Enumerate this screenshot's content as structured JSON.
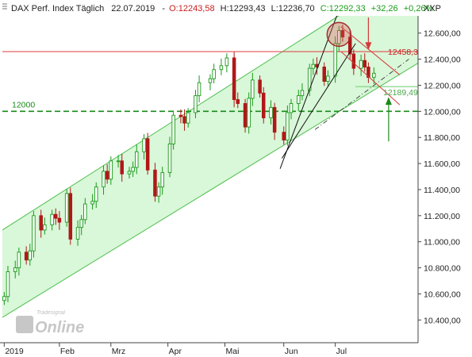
{
  "header": {
    "instrument": "DAX Perf. Index Täglich",
    "date": "22.07.2019",
    "open": "O:12243,58",
    "high": "H:12293,43",
    "low": "L:12236,70",
    "close": "C:12292,33",
    "change": "+32,26",
    "change_pct": "+0,26%"
  },
  "axis_unit": "XXP",
  "level_labels": {
    "resistance": "12458,3",
    "support": "12189,49",
    "round": "12000"
  },
  "watermark": {
    "brand": "Tradesignal",
    "product": "Online"
  },
  "colors": {
    "bull": "#1a9a1a",
    "bear": "#b01818",
    "channel_fill": "#d9f7d9",
    "channel_line": "#4cbf4c",
    "resistance": "#e05050",
    "support_green": "#7ad17a",
    "dashed_green": "#1a8a1a"
  },
  "chart_data": {
    "type": "candlestick",
    "title": "",
    "xlabel": "",
    "ylabel": "",
    "x_ticks": [
      "2019",
      "Feb",
      "Mrz",
      "Apr",
      "Mai",
      "Jun",
      "Jul"
    ],
    "y_ticks": [
      "10.400,00",
      "10.600,00",
      "10.800,00",
      "11.000,00",
      "11.200,00",
      "11.400,00",
      "11.600,00",
      "11.800,00",
      "12.000,00",
      "12.200,00",
      "12.400,00",
      "12.600,00"
    ],
    "ylim": [
      10250,
      12720
    ],
    "y_tick_values": [
      10400,
      10600,
      10800,
      11000,
      11200,
      11400,
      11600,
      11800,
      12000,
      12200,
      12400,
      12600
    ],
    "x_range": [
      "2019-01-01",
      "2019-08-15"
    ],
    "month_starts": [
      "2019-01-02",
      "2019-02-01",
      "2019-03-01",
      "2019-04-01",
      "2019-05-02",
      "2019-06-03",
      "2019-07-01"
    ],
    "close_points": [
      [
        "2019-01-02",
        10580
      ],
      [
        "2019-01-04",
        10770
      ],
      [
        "2019-01-08",
        10800
      ],
      [
        "2019-01-10",
        10920
      ],
      [
        "2019-01-14",
        10860
      ],
      [
        "2019-01-16",
        10930
      ],
      [
        "2019-01-18",
        11200
      ],
      [
        "2019-01-22",
        11090
      ],
      [
        "2019-01-24",
        11130
      ],
      [
        "2019-01-28",
        11210
      ],
      [
        "2019-01-30",
        11180
      ],
      [
        "2019-02-01",
        11150
      ],
      [
        "2019-02-05",
        11370
      ],
      [
        "2019-02-07",
        11020
      ],
      [
        "2019-02-11",
        11110
      ],
      [
        "2019-02-13",
        11170
      ],
      [
        "2019-02-15",
        11290
      ],
      [
        "2019-02-19",
        11310
      ],
      [
        "2019-02-21",
        11420
      ],
      [
        "2019-02-25",
        11540
      ],
      [
        "2019-02-27",
        11480
      ],
      [
        "2019-03-01",
        11620
      ],
      [
        "2019-03-05",
        11620
      ],
      [
        "2019-03-07",
        11520
      ],
      [
        "2019-03-11",
        11540
      ],
      [
        "2019-03-13",
        11570
      ],
      [
        "2019-03-15",
        11690
      ],
      [
        "2019-03-19",
        11790
      ],
      [
        "2019-03-21",
        11550
      ],
      [
        "2019-03-25",
        11350
      ],
      [
        "2019-03-27",
        11420
      ],
      [
        "2019-03-29",
        11530
      ],
      [
        "2019-04-02",
        11750
      ],
      [
        "2019-04-04",
        11970
      ],
      [
        "2019-04-08",
        11960
      ],
      [
        "2019-04-10",
        11910
      ],
      [
        "2019-04-12",
        11990
      ],
      [
        "2019-04-16",
        12120
      ],
      [
        "2019-04-18",
        12220
      ],
      [
        "2019-04-24",
        12250
      ],
      [
        "2019-04-26",
        12320
      ],
      [
        "2019-04-30",
        12350
      ],
      [
        "2019-05-03",
        12410
      ],
      [
        "2019-05-07",
        12090
      ],
      [
        "2019-05-09",
        12060
      ],
      [
        "2019-05-13",
        11880
      ],
      [
        "2019-05-15",
        12100
      ],
      [
        "2019-05-17",
        12240
      ],
      [
        "2019-05-21",
        12140
      ],
      [
        "2019-05-23",
        11950
      ],
      [
        "2019-05-27",
        12030
      ],
      [
        "2019-05-29",
        11840
      ],
      [
        "2019-06-03",
        11780
      ],
      [
        "2019-06-05",
        11990
      ],
      [
        "2019-06-07",
        12060
      ],
      [
        "2019-06-11",
        12120
      ],
      [
        "2019-06-13",
        12160
      ],
      [
        "2019-06-17",
        12330
      ],
      [
        "2019-06-19",
        12360
      ],
      [
        "2019-06-21",
        12340
      ],
      [
        "2019-06-25",
        12230
      ],
      [
        "2019-06-27",
        12270
      ],
      [
        "2019-07-01",
        12520
      ],
      [
        "2019-07-03",
        12620
      ],
      [
        "2019-07-05",
        12570
      ],
      [
        "2019-07-09",
        12440
      ],
      [
        "2019-07-11",
        12330
      ],
      [
        "2019-07-15",
        12390
      ],
      [
        "2019-07-17",
        12340
      ],
      [
        "2019-07-19",
        12260
      ],
      [
        "2019-07-22",
        12292
      ]
    ],
    "horizontal_levels": [
      {
        "value": 12458.3,
        "style": "solid",
        "color": "resistance"
      },
      {
        "value": 12189.49,
        "style": "solid",
        "color": "support_green"
      },
      {
        "value": 12000,
        "style": "dashed",
        "color": "dashed_green"
      }
    ],
    "channel": {
      "upper": [
        [
          "2019-01-01",
          11090
        ],
        [
          "2019-08-15",
          13120
        ]
      ],
      "lower": [
        [
          "2019-01-01",
          10420
        ],
        [
          "2019-08-15",
          12370
        ]
      ]
    },
    "grid": false,
    "legend": "none"
  }
}
